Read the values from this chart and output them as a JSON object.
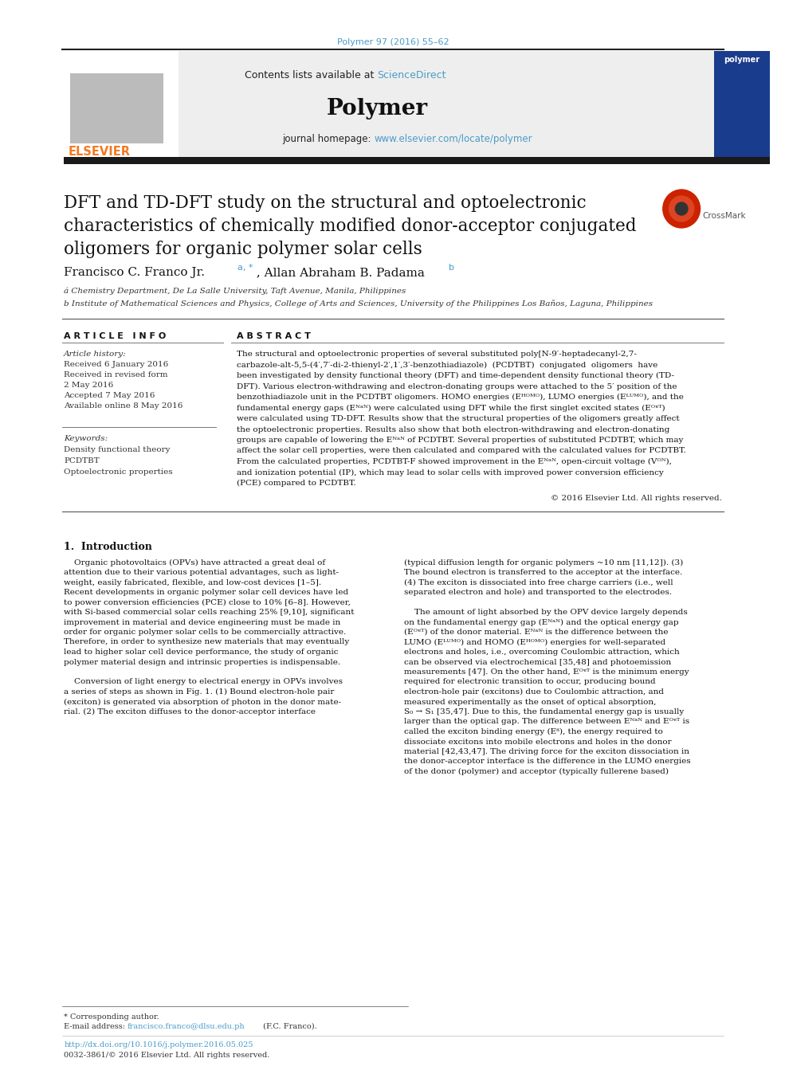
{
  "page_color": "#ffffff",
  "journal_ref": "Polymer 97 (2016) 55–62",
  "journal_ref_color": "#4a9cc7",
  "contents_text": "Contents lists available at ",
  "sciencedirect_text": "ScienceDirect",
  "sciencedirect_color": "#4a9cc7",
  "journal_name": "Polymer",
  "journal_homepage_text": "journal homepage: ",
  "journal_url": "www.elsevier.com/locate/polymer",
  "journal_url_color": "#4a9cc7",
  "elsevier_color": "#f47920",
  "paper_title_line1": "DFT and TD-DFT study on the structural and optoelectronic",
  "paper_title_line2": "characteristics of chemically modified donor-acceptor conjugated",
  "paper_title_line3": "oligomers for organic polymer solar cells",
  "affil_a": "á Chemistry Department, De La Salle University, Taft Avenue, Manila, Philippines",
  "affil_b": "b Institute of Mathematical Sciences and Physics, College of Arts and Sciences, University of the Philippines Los Baños, Laguna, Philippines",
  "article_info_title": "A R T I C L E   I N F O",
  "abstract_title": "A B S T R A C T",
  "doi_color": "#4a9cc7"
}
